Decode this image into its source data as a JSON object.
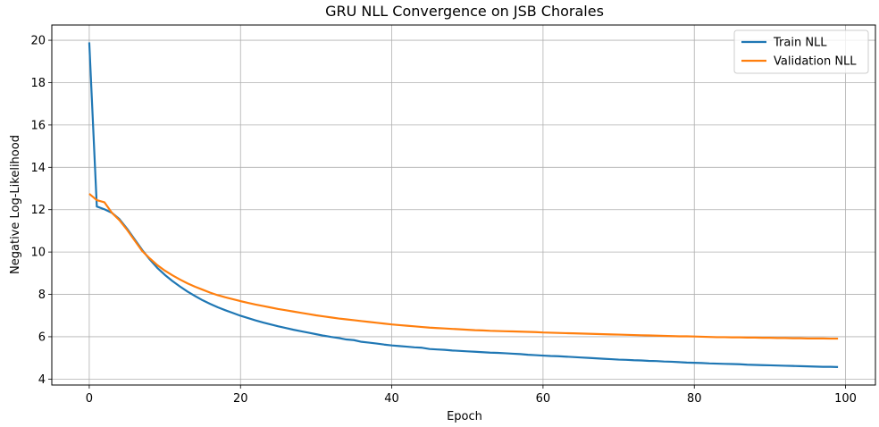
{
  "chart_data": {
    "type": "line",
    "title": "GRU NLL Convergence on JSB Chorales",
    "xlabel": "Epoch",
    "ylabel": "Negative Log-Likelihood",
    "xlim": [
      -4.95,
      103.95
    ],
    "ylim": [
      3.72,
      20.72
    ],
    "xticks": [
      0,
      20,
      40,
      60,
      80,
      100
    ],
    "yticks": [
      4,
      6,
      8,
      10,
      12,
      14,
      16,
      18,
      20
    ],
    "grid": true,
    "legend_position": "top-right",
    "series": [
      {
        "name": "Train NLL",
        "color": "#1f77b4",
        "x": [
          0,
          1,
          2,
          3,
          4,
          5,
          6,
          7,
          8,
          9,
          10,
          11,
          12,
          13,
          14,
          15,
          16,
          17,
          18,
          19,
          20,
          21,
          22,
          23,
          24,
          25,
          26,
          27,
          28,
          29,
          30,
          31,
          32,
          33,
          34,
          35,
          36,
          37,
          38,
          39,
          40,
          41,
          42,
          43,
          44,
          45,
          46,
          47,
          48,
          49,
          50,
          51,
          52,
          53,
          54,
          55,
          56,
          57,
          58,
          59,
          60,
          61,
          62,
          63,
          64,
          65,
          66,
          67,
          68,
          69,
          70,
          71,
          72,
          73,
          74,
          75,
          76,
          77,
          78,
          79,
          80,
          81,
          82,
          83,
          84,
          85,
          86,
          87,
          88,
          89,
          90,
          91,
          92,
          93,
          94,
          95,
          96,
          97,
          98,
          99
        ],
        "values": [
          19.9,
          12.15,
          12.02,
          11.85,
          11.55,
          11.1,
          10.6,
          10.1,
          9.65,
          9.25,
          8.92,
          8.63,
          8.37,
          8.13,
          7.92,
          7.72,
          7.55,
          7.39,
          7.25,
          7.12,
          6.99,
          6.88,
          6.77,
          6.67,
          6.58,
          6.49,
          6.41,
          6.33,
          6.26,
          6.19,
          6.12,
          6.05,
          5.99,
          5.94,
          5.87,
          5.84,
          5.76,
          5.72,
          5.68,
          5.63,
          5.59,
          5.56,
          5.53,
          5.5,
          5.48,
          5.42,
          5.4,
          5.38,
          5.35,
          5.33,
          5.31,
          5.29,
          5.27,
          5.25,
          5.24,
          5.22,
          5.2,
          5.18,
          5.15,
          5.13,
          5.11,
          5.09,
          5.08,
          5.06,
          5.04,
          5.02,
          5.0,
          4.98,
          4.96,
          4.94,
          4.92,
          4.91,
          4.89,
          4.88,
          4.86,
          4.85,
          4.83,
          4.82,
          4.8,
          4.78,
          4.77,
          4.76,
          4.74,
          4.73,
          4.72,
          4.71,
          4.7,
          4.68,
          4.67,
          4.66,
          4.65,
          4.64,
          4.63,
          4.62,
          4.61,
          4.6,
          4.59,
          4.58,
          4.58,
          4.57
        ]
      },
      {
        "name": "Validation NLL",
        "color": "#ff7f0e",
        "x": [
          0,
          1,
          2,
          3,
          4,
          5,
          6,
          7,
          8,
          9,
          10,
          11,
          12,
          13,
          14,
          15,
          16,
          17,
          18,
          19,
          20,
          21,
          22,
          23,
          24,
          25,
          26,
          27,
          28,
          29,
          30,
          31,
          32,
          33,
          34,
          35,
          36,
          37,
          38,
          39,
          40,
          41,
          42,
          43,
          44,
          45,
          46,
          47,
          48,
          49,
          50,
          51,
          52,
          53,
          54,
          55,
          56,
          57,
          58,
          59,
          60,
          61,
          62,
          63,
          64,
          65,
          66,
          67,
          68,
          69,
          70,
          71,
          72,
          73,
          74,
          75,
          76,
          77,
          78,
          79,
          80,
          81,
          82,
          83,
          84,
          85,
          86,
          87,
          88,
          89,
          90,
          91,
          92,
          93,
          94,
          95,
          96,
          97,
          98,
          99
        ],
        "values": [
          12.75,
          12.45,
          12.35,
          11.85,
          11.5,
          11.05,
          10.55,
          10.05,
          9.7,
          9.38,
          9.12,
          8.9,
          8.7,
          8.52,
          8.36,
          8.22,
          8.08,
          7.96,
          7.86,
          7.77,
          7.68,
          7.6,
          7.52,
          7.45,
          7.38,
          7.31,
          7.25,
          7.19,
          7.13,
          7.07,
          7.01,
          6.96,
          6.91,
          6.86,
          6.82,
          6.78,
          6.74,
          6.7,
          6.66,
          6.62,
          6.58,
          6.55,
          6.52,
          6.49,
          6.46,
          6.43,
          6.41,
          6.39,
          6.37,
          6.35,
          6.33,
          6.31,
          6.3,
          6.28,
          6.27,
          6.26,
          6.25,
          6.24,
          6.23,
          6.22,
          6.2,
          6.19,
          6.18,
          6.17,
          6.16,
          6.15,
          6.14,
          6.13,
          6.12,
          6.11,
          6.1,
          6.09,
          6.08,
          6.07,
          6.06,
          6.05,
          6.04,
          6.03,
          6.02,
          6.02,
          6.01,
          6.0,
          5.99,
          5.98,
          5.98,
          5.97,
          5.97,
          5.96,
          5.96,
          5.95,
          5.95,
          5.94,
          5.94,
          5.93,
          5.93,
          5.92,
          5.92,
          5.92,
          5.91,
          5.91
        ]
      }
    ]
  }
}
